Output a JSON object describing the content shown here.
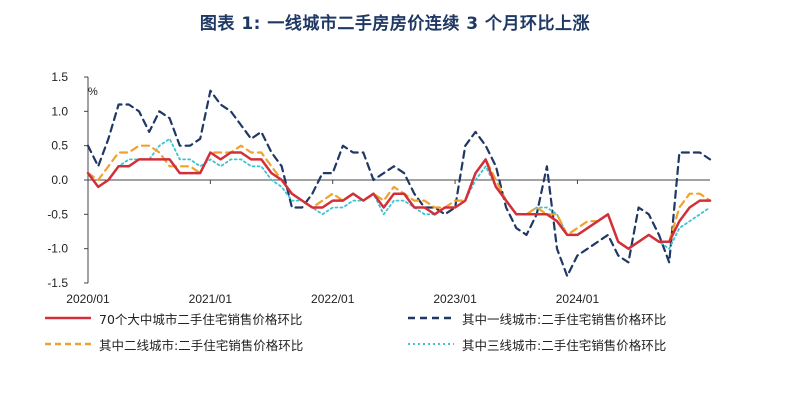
{
  "title": "图表 1:  一线城市二手房房价连续 3 个月环比上涨",
  "chart_data": {
    "type": "line",
    "title": "图表 1:  一线城市二手房房价连续 3 个月环比上涨",
    "ylabel": "%",
    "ylim": [
      -1.5,
      1.5
    ],
    "yticks": [
      1.5,
      1.0,
      0.5,
      0.0,
      -0.5,
      -1.0,
      -1.5
    ],
    "ytick_labels": [
      "1.5",
      "1.0",
      "0.5",
      "0.0",
      "-0.5",
      "-1.0",
      "-1.5"
    ],
    "x_range": [
      "2020-01",
      "2025-05"
    ],
    "xtick_labels": [
      {
        "label": "2020/01",
        "index": 0
      },
      {
        "label": "2021/01",
        "index": 12
      },
      {
        "label": "2022/01",
        "index": 24
      },
      {
        "label": "2023/01",
        "index": 36
      },
      {
        "label": "2024/01",
        "index": 48
      }
    ],
    "series": [
      {
        "name": "70个大中城市二手住宅销售价格环比",
        "color": "#d1303a",
        "style": "solid",
        "values": [
          0.1,
          -0.1,
          0.0,
          0.2,
          0.2,
          0.3,
          0.3,
          0.3,
          0.3,
          0.1,
          0.1,
          0.1,
          0.4,
          0.3,
          0.4,
          0.4,
          0.3,
          0.3,
          0.1,
          0.0,
          -0.2,
          -0.3,
          -0.4,
          -0.4,
          -0.3,
          -0.3,
          -0.2,
          -0.3,
          -0.2,
          -0.4,
          -0.2,
          -0.2,
          -0.4,
          -0.4,
          -0.5,
          -0.4,
          -0.4,
          -0.3,
          0.1,
          0.3,
          -0.1,
          -0.3,
          -0.5,
          -0.5,
          -0.5,
          -0.5,
          -0.6,
          -0.8,
          -0.8,
          -0.7,
          -0.6,
          -0.5,
          -0.9,
          -1.0,
          -0.9,
          -0.8,
          -0.9,
          -0.9,
          -0.6,
          -0.4,
          -0.3,
          -0.3
        ]
      },
      {
        "name": "其中一线城市:二手住宅销售价格环比",
        "color": "#203864",
        "style": "dashed",
        "values": [
          0.5,
          0.2,
          0.6,
          1.1,
          1.1,
          1.0,
          0.7,
          1.0,
          0.9,
          0.5,
          0.5,
          0.6,
          1.3,
          1.1,
          1.0,
          0.8,
          0.6,
          0.7,
          0.4,
          0.2,
          -0.4,
          -0.4,
          -0.2,
          0.1,
          0.1,
          0.5,
          0.4,
          0.4,
          0.0,
          0.1,
          0.2,
          0.1,
          -0.2,
          -0.4,
          -0.4,
          -0.5,
          -0.4,
          0.5,
          0.7,
          0.5,
          0.2,
          -0.4,
          -0.7,
          -0.8,
          -0.5,
          0.2,
          -1.0,
          -1.4,
          -1.1,
          -1.0,
          -0.9,
          -0.8,
          -1.1,
          -1.2,
          -0.4,
          -0.5,
          -0.8,
          -1.2,
          0.4,
          0.4,
          0.4,
          0.3
        ]
      },
      {
        "name": "其中二线城市:二手住宅销售价格环比",
        "color": "#f0a22e",
        "style": "dashed",
        "values": [
          0.1,
          0.0,
          0.2,
          0.4,
          0.4,
          0.5,
          0.5,
          0.4,
          0.2,
          0.2,
          0.2,
          0.1,
          0.4,
          0.4,
          0.4,
          0.5,
          0.4,
          0.4,
          0.2,
          0.0,
          -0.2,
          -0.3,
          -0.4,
          -0.3,
          -0.2,
          -0.3,
          -0.2,
          -0.3,
          -0.2,
          -0.3,
          -0.1,
          -0.2,
          -0.3,
          -0.3,
          -0.4,
          -0.4,
          -0.3,
          -0.3,
          0.1,
          0.3,
          0.0,
          -0.3,
          -0.5,
          -0.5,
          -0.4,
          -0.5,
          -0.5,
          -0.8,
          -0.7,
          -0.6,
          -0.6,
          -0.5,
          -0.9,
          -1.0,
          -0.9,
          -0.8,
          -0.9,
          -0.9,
          -0.4,
          -0.2,
          -0.2,
          -0.3
        ]
      },
      {
        "name": "其中三线城市:二手住宅销售价格环比",
        "color": "#3cc4cf",
        "style": "dotted",
        "values": [
          0.1,
          -0.1,
          0.0,
          0.2,
          0.3,
          0.3,
          0.3,
          0.5,
          0.6,
          0.3,
          0.3,
          0.2,
          0.3,
          0.2,
          0.3,
          0.3,
          0.2,
          0.2,
          0.0,
          -0.1,
          -0.3,
          -0.3,
          -0.4,
          -0.5,
          -0.4,
          -0.4,
          -0.3,
          -0.3,
          -0.2,
          -0.5,
          -0.3,
          -0.3,
          -0.4,
          -0.5,
          -0.5,
          -0.4,
          -0.4,
          -0.3,
          0.0,
          0.2,
          -0.1,
          -0.3,
          -0.5,
          -0.5,
          -0.4,
          -0.4,
          -0.5,
          -0.8,
          -0.8,
          -0.7,
          -0.6,
          -0.5,
          -0.9,
          -1.0,
          -0.9,
          -0.8,
          -0.9,
          -1.0,
          -0.7,
          -0.6,
          -0.5,
          -0.4
        ]
      }
    ]
  },
  "legend": [
    {
      "label": "70个大中城市二手住宅销售价格环比"
    },
    {
      "label": "其中一线城市:二手住宅销售价格环比"
    },
    {
      "label": "其中二线城市:二手住宅销售价格环比"
    },
    {
      "label": "其中三线城市:二手住宅销售价格环比"
    }
  ]
}
